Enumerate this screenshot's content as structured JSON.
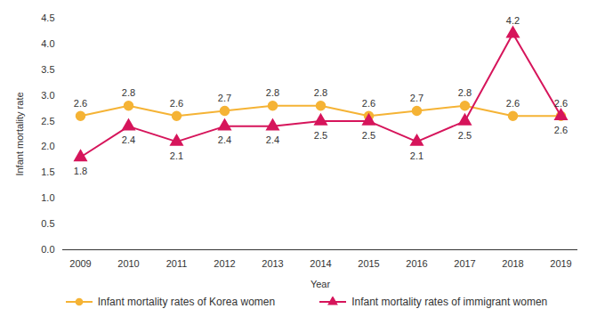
{
  "chart_data": {
    "type": "line",
    "x_label": "Year",
    "y_label": "Infant mortality rate",
    "categories": [
      "2009",
      "2010",
      "2011",
      "2012",
      "2013",
      "2014",
      "2015",
      "2016",
      "2017",
      "2018",
      "2019"
    ],
    "series": [
      {
        "name": "Infant mortality rates of Korea women",
        "color": "#f5b335",
        "marker": "circle",
        "values": [
          2.6,
          2.8,
          2.6,
          2.7,
          2.8,
          2.8,
          2.6,
          2.7,
          2.8,
          2.6,
          2.6
        ]
      },
      {
        "name": "Infant mortality rates of immigrant women",
        "color": "#d6155b",
        "marker": "triangle",
        "values": [
          1.8,
          2.4,
          2.1,
          2.4,
          2.4,
          2.5,
          2.5,
          2.1,
          2.5,
          4.2,
          2.6
        ]
      }
    ],
    "ylim": [
      0,
      4.5
    ],
    "yticks": [
      {
        "value": 0,
        "label": "0.0"
      },
      0.5,
      {
        "value": 1,
        "label": "1.0"
      },
      1.5,
      {
        "value": 2,
        "label": "2.0"
      },
      2.5,
      {
        "value": 3,
        "label": "3.0"
      },
      3.5,
      {
        "value": 4,
        "label": "4.0"
      },
      4.5
    ],
    "data_labels": true,
    "grid": false,
    "legend": "bottom"
  }
}
